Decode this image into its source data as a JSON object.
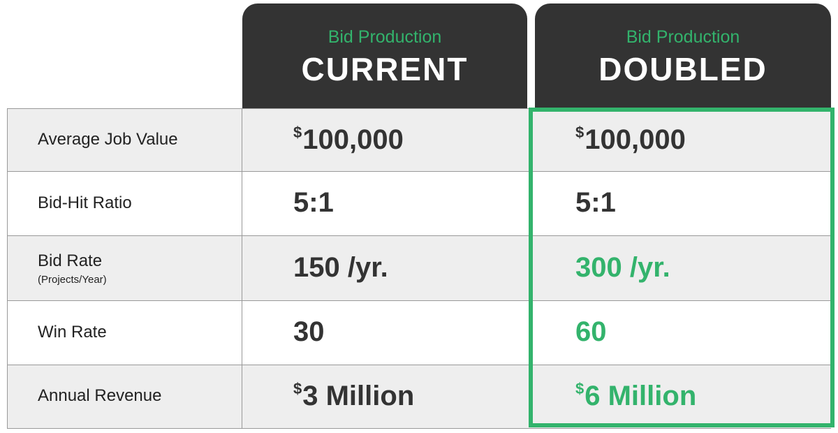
{
  "columns": [
    {
      "subtitle": "Bid Production",
      "title": "CURRENT"
    },
    {
      "subtitle": "Bid Production",
      "title": "DOUBLED"
    }
  ],
  "accent_color": "#33b36c",
  "rows": [
    {
      "label": "Average Job Value",
      "cells": [
        {
          "prefix": "$",
          "text": "100,000"
        },
        {
          "prefix": "$",
          "text": "100,000"
        }
      ]
    },
    {
      "label": "Bid-Hit Ratio",
      "cells": [
        {
          "text": "5:1"
        },
        {
          "text": "5:1"
        }
      ]
    },
    {
      "label": "Bid Rate",
      "sublabel": "(Projects/Year)",
      "cells": [
        {
          "text": "150 /yr."
        },
        {
          "text": "300 /yr.",
          "color": "#33b36c"
        }
      ]
    },
    {
      "label": "Win Rate",
      "cells": [
        {
          "text": "30"
        },
        {
          "text": "60",
          "color": "#33b36c"
        }
      ]
    },
    {
      "label": "Annual Revenue",
      "cells": [
        {
          "prefix": "$",
          "text": "3 Million"
        },
        {
          "prefix": "$",
          "text": "6 Million",
          "color": "#33b36c"
        }
      ]
    }
  ]
}
